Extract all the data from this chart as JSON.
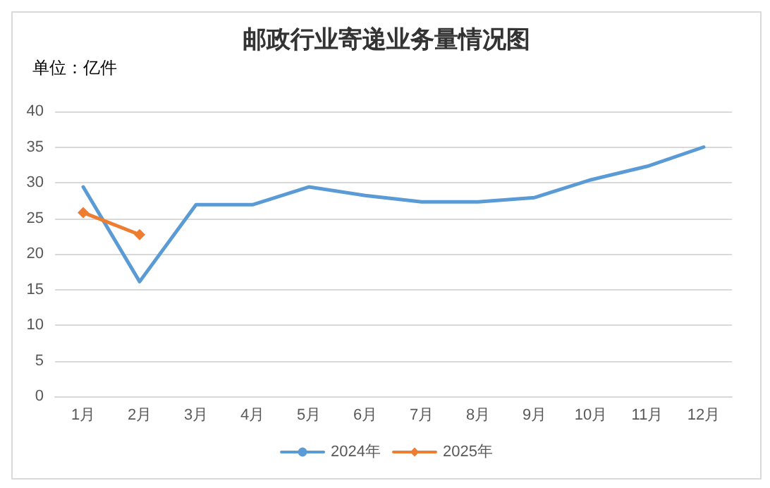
{
  "chart_data": {
    "type": "line",
    "title": "邮政行业寄递业务量情况图",
    "annotations": [
      "单位：亿件"
    ],
    "categories": [
      "1月",
      "2月",
      "3月",
      "4月",
      "5月",
      "6月",
      "7月",
      "8月",
      "9月",
      "10月",
      "11月",
      "12月"
    ],
    "series": [
      {
        "name": "2024年",
        "color": "#5b9bd5",
        "marker": "none",
        "values": [
          29.4,
          16.1,
          26.9,
          26.9,
          29.4,
          28.2,
          27.3,
          27.3,
          27.9,
          30.4,
          32.3,
          35.0
        ]
      },
      {
        "name": "2025年",
        "color": "#ed7d31",
        "marker": "diamond",
        "values": [
          25.8,
          22.7,
          null,
          null,
          null,
          null,
          null,
          null,
          null,
          null,
          null,
          null
        ]
      }
    ],
    "ylim": [
      0,
      40
    ],
    "yticks": [
      0,
      5,
      10,
      15,
      20,
      25,
      30,
      35,
      40
    ],
    "grid": "y",
    "legend": "bottom",
    "line_style": "solid"
  }
}
